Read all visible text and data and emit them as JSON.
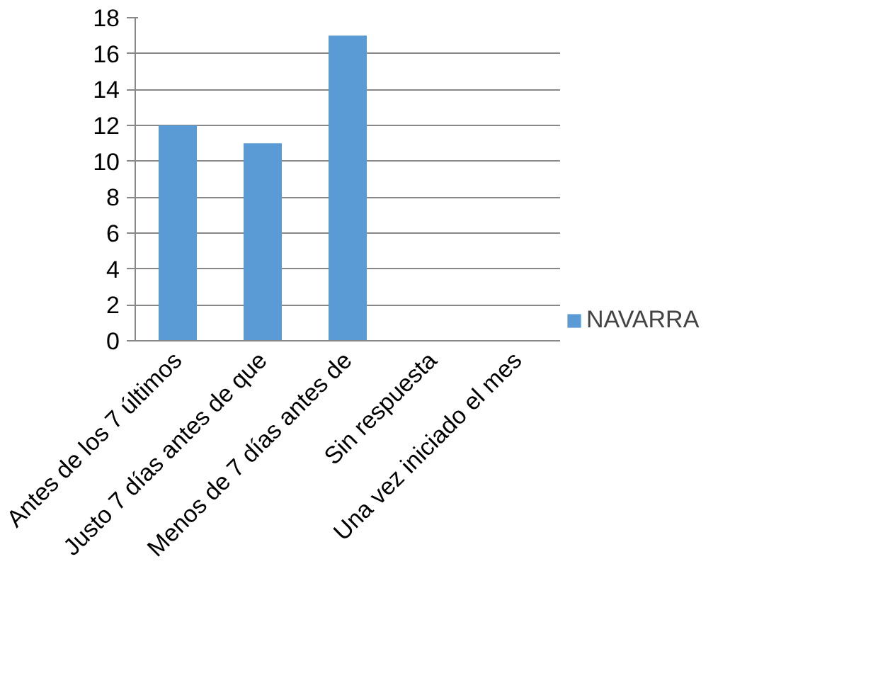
{
  "chart_data": {
    "type": "bar",
    "categories": [
      "Antes de los 7 últimos",
      "Justo 7 días antes de que",
      "Menos de 7 días antes de",
      "Sin respuesta",
      "Una vez iniciado el mes"
    ],
    "series": [
      {
        "name": "NAVARRA",
        "color": "#5b9bd5",
        "values": [
          12,
          11,
          17,
          0,
          0
        ]
      }
    ],
    "ylim": [
      0,
      18
    ],
    "yticks": [
      0,
      2,
      4,
      6,
      8,
      10,
      12,
      14,
      16,
      18
    ],
    "grid": "y",
    "legend": "right"
  }
}
